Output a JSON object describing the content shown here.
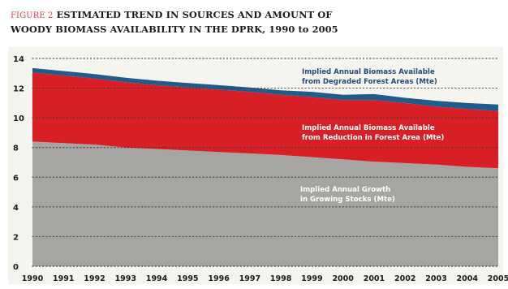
{
  "figure": {
    "label": "FIGURE 2",
    "title_line1": "ESTIMATED TREND IN SOURCES AND AMOUNT OF",
    "title_line2": "WOODY BIOMASS AVAILABILITY IN THE DPRK, 1990 to 2005"
  },
  "colors": {
    "background": "#f6f4ef",
    "growth": "#a7a5a2",
    "reduction": "#d91f26",
    "degraded": "#1f5b8c",
    "label_dark": "#1f4c7a",
    "label_light": "#ffffff",
    "axis_text": "#1a1a1a"
  },
  "chart_data": {
    "type": "area",
    "stacked": true,
    "x": [
      "1990",
      "1991",
      "1992",
      "1993",
      "1994",
      "1995",
      "1996",
      "1997",
      "1998",
      "1999",
      "2000",
      "2001",
      "2002",
      "2003",
      "2004",
      "2005"
    ],
    "ylim": [
      0,
      14
    ],
    "yticks": [
      0,
      2,
      4,
      6,
      8,
      10,
      12,
      14
    ],
    "grid": "dotted horizontal",
    "series": [
      {
        "name": "Implied Annual Growth in Growing Stocks (Mte)",
        "label_lines": [
          "Implied Annual Growth",
          "in Growing Stocks (Mte)"
        ],
        "color_key": "growth",
        "values": [
          8.4,
          8.3,
          8.2,
          8.0,
          7.9,
          7.8,
          7.7,
          7.6,
          7.5,
          7.35,
          7.2,
          7.05,
          6.95,
          6.85,
          6.7,
          6.6
        ]
      },
      {
        "name": "Implied Annual Biomass Available from Reduction in Forest Area (Mte)",
        "label_lines": [
          "Implied Annual Biomass Available",
          "from Reduction in Forest Area (Mte)"
        ],
        "color_key": "reduction",
        "values": [
          4.65,
          4.55,
          4.45,
          4.4,
          4.3,
          4.25,
          4.2,
          4.15,
          4.05,
          4.05,
          4.0,
          4.15,
          4.05,
          3.9,
          3.9,
          3.85
        ]
      },
      {
        "name": "Implied Annual Biomass Available from Degraded Forest Areas (Mte)",
        "label_lines": [
          "Implied Annual Biomass Available",
          "from Degraded Forest Areas (Mte)"
        ],
        "color_key": "degraded",
        "values": [
          0.3,
          0.3,
          0.3,
          0.3,
          0.3,
          0.3,
          0.3,
          0.3,
          0.3,
          0.35,
          0.35,
          0.4,
          0.35,
          0.4,
          0.4,
          0.45
        ]
      }
    ]
  }
}
